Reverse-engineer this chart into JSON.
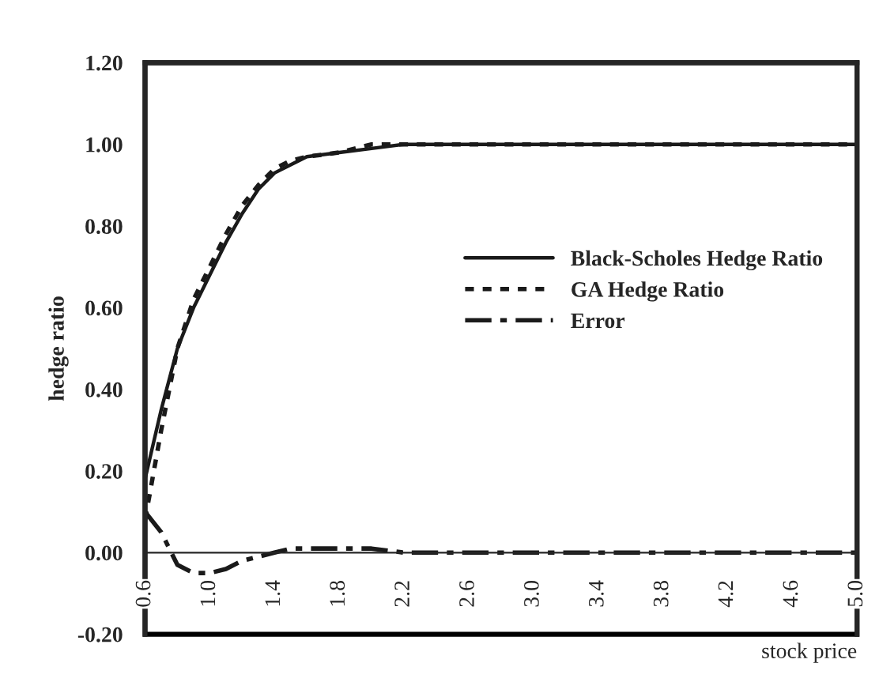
{
  "chart_data": {
    "type": "line",
    "ylabel": "hedge ratio",
    "xlabel": "stock price",
    "xlim": [
      0.6,
      5.0
    ],
    "xticks": [
      {
        "value": 0.6,
        "label": "0.6"
      },
      {
        "value": 1.0,
        "label": "1.0"
      },
      {
        "value": 1.4,
        "label": "1.4"
      },
      {
        "value": 1.8,
        "label": "1.8"
      },
      {
        "value": 2.2,
        "label": "2.2"
      },
      {
        "value": 2.6,
        "label": "2.6"
      },
      {
        "value": 3.0,
        "label": "3.0"
      },
      {
        "value": 3.4,
        "label": "3.4"
      },
      {
        "value": 3.8,
        "label": "3.8"
      },
      {
        "value": 4.2,
        "label": "4.2"
      },
      {
        "value": 4.6,
        "label": "4.6"
      },
      {
        "value": 5.0,
        "label": "5.0"
      }
    ],
    "ylim": [
      -0.2,
      1.2
    ],
    "yticks": [
      {
        "value": -0.2,
        "label": "-0.20"
      },
      {
        "value": 0.0,
        "label": "0.00"
      },
      {
        "value": 0.2,
        "label": "0.20"
      },
      {
        "value": 0.4,
        "label": "0.40"
      },
      {
        "value": 0.6,
        "label": "0.60"
      },
      {
        "value": 0.8,
        "label": "0.80"
      },
      {
        "value": 1.0,
        "label": "1.00"
      },
      {
        "value": 1.2,
        "label": "1.20"
      }
    ],
    "x": [
      0.6,
      0.7,
      0.8,
      0.9,
      1.0,
      1.1,
      1.2,
      1.3,
      1.4,
      1.5,
      1.6,
      1.8,
      2.0,
      2.2,
      3.0,
      4.0,
      5.0
    ],
    "series": [
      {
        "name": "Black-Scholes Hedge Ratio",
        "color": "#1a1a1a",
        "line_style": "solid",
        "values": [
          0.18,
          0.35,
          0.5,
          0.6,
          0.68,
          0.76,
          0.83,
          0.89,
          0.93,
          0.95,
          0.97,
          0.98,
          0.99,
          1.0,
          1.0,
          1.0,
          1.0
        ]
      },
      {
        "name": "GA Hedge Ratio",
        "color": "#1a1a1a",
        "line_style": "dotted",
        "values": [
          0.08,
          0.3,
          0.5,
          0.62,
          0.7,
          0.78,
          0.85,
          0.9,
          0.94,
          0.96,
          0.97,
          0.98,
          1.0,
          1.0,
          1.0,
          1.0,
          1.0
        ]
      },
      {
        "name": "Error",
        "color": "#1a1a1a",
        "line_style": "dashed",
        "values": [
          0.1,
          0.05,
          -0.03,
          -0.05,
          -0.05,
          -0.04,
          -0.02,
          -0.01,
          0.0,
          0.01,
          0.01,
          0.01,
          0.01,
          0.0,
          0.0,
          0.0,
          0.0
        ]
      }
    ],
    "grid": false,
    "legend": "right"
  }
}
